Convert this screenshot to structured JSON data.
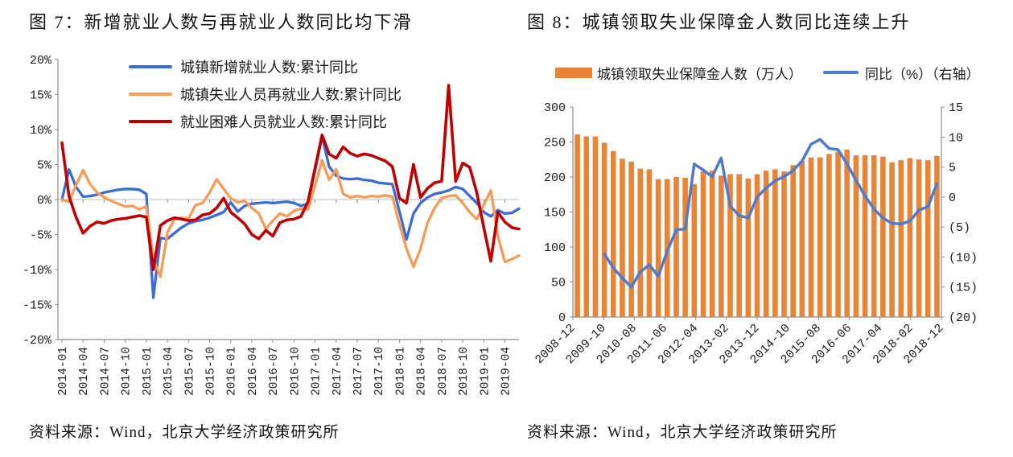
{
  "chart_data": [
    {
      "id": "fig7",
      "type": "line",
      "title": "图 7：新增就业人数与再就业人数同比均下滑",
      "source": "资料来源：Wind，北京大学经济政策研究所",
      "ylabel": "",
      "ylim": [
        -20,
        20
      ],
      "y_ticks": [
        "20%",
        "15%",
        "10%",
        "5%",
        "0%",
        "-5%",
        "-10%",
        "-15%",
        "-20%"
      ],
      "grid": "zero-line-only",
      "legend_position": "top-left-inside",
      "x": [
        "2014-01",
        "2014-02",
        "2014-03",
        "2014-04",
        "2014-05",
        "2014-06",
        "2014-07",
        "2014-08",
        "2014-09",
        "2014-10",
        "2014-11",
        "2014-12",
        "2015-01",
        "2015-02",
        "2015-03",
        "2015-04",
        "2015-05",
        "2015-06",
        "2015-07",
        "2015-08",
        "2015-09",
        "2015-10",
        "2015-11",
        "2015-12",
        "2016-01",
        "2016-02",
        "2016-03",
        "2016-04",
        "2016-05",
        "2016-06",
        "2016-07",
        "2016-08",
        "2016-09",
        "2016-10",
        "2016-11",
        "2016-12",
        "2017-01",
        "2017-02",
        "2017-03",
        "2017-04",
        "2017-05",
        "2017-06",
        "2017-07",
        "2017-08",
        "2017-09",
        "2017-10",
        "2017-11",
        "2017-12",
        "2018-01",
        "2018-02",
        "2018-03",
        "2018-04",
        "2018-05",
        "2018-06",
        "2018-07",
        "2018-08",
        "2018-09",
        "2018-10",
        "2018-11",
        "2018-12",
        "2019-01",
        "2019-02",
        "2019-03",
        "2019-04",
        "2019-05",
        "2019-06"
      ],
      "x_tick_labels": [
        "2014-01",
        "2014-04",
        "2014-07",
        "2014-10",
        "2015-01",
        "2015-04",
        "2015-07",
        "2015-10",
        "2016-01",
        "2016-04",
        "2016-07",
        "2016-10",
        "2017-01",
        "2017-04",
        "2017-07",
        "2017-10",
        "2018-01",
        "2018-04",
        "2018-07",
        "2018-10",
        "2019-01",
        "2019-04"
      ],
      "series": [
        {
          "name": "城镇新增就业人数:累计同比",
          "color": "#3A6CD8",
          "values": [
            0.0,
            4.3,
            1.8,
            0.4,
            0.5,
            0.7,
            1.0,
            1.2,
            1.4,
            1.5,
            1.5,
            1.4,
            0.8,
            -14.0,
            -5.5,
            -5.6,
            -4.8,
            -4.0,
            -3.4,
            -3.1,
            -2.9,
            -2.6,
            -2.2,
            -1.8,
            -0.4,
            -1.7,
            -0.9,
            -0.6,
            -0.5,
            -0.4,
            -0.5,
            -0.4,
            -0.3,
            -0.5,
            -0.9,
            -0.6,
            4.2,
            9.0,
            4.7,
            3.4,
            3.0,
            2.9,
            3.0,
            2.8,
            2.7,
            2.4,
            2.3,
            2.2,
            -1.7,
            -5.7,
            -2.0,
            -0.5,
            0.3,
            0.8,
            1.0,
            1.3,
            1.8,
            1.5,
            0.5,
            -0.5,
            -1.8,
            -2.4,
            -1.5,
            -2.0,
            -1.9,
            -1.3
          ]
        },
        {
          "name": "城镇失业人员再就业人数:累计同比",
          "color": "#F79B57",
          "values": [
            0.0,
            -0.3,
            2.0,
            4.2,
            2.2,
            1.0,
            0.3,
            -0.2,
            -0.6,
            -1.0,
            -0.9,
            -1.4,
            -1.0,
            -8.5,
            -11.0,
            -4.7,
            -2.8,
            -2.6,
            -2.7,
            -0.8,
            -0.5,
            1.0,
            2.9,
            1.5,
            0.2,
            -0.4,
            -0.2,
            -1.2,
            -2.0,
            -4.2,
            -3.0,
            -2.0,
            -2.4,
            -1.6,
            -1.3,
            -1.4,
            2.0,
            5.6,
            2.8,
            4.3,
            0.8,
            0.3,
            0.5,
            0.3,
            0.5,
            0.4,
            0.6,
            0.4,
            -3.5,
            -7.0,
            -9.6,
            -7.0,
            -3.3,
            -1.2,
            0.2,
            0.5,
            0.6,
            -0.5,
            -1.8,
            -2.8,
            -0.8,
            1.3,
            -5.2,
            -8.9,
            -8.5,
            -8.0
          ]
        },
        {
          "name": "就业困难人员就业人数:累计同比",
          "color": "#C00000",
          "values": [
            8.1,
            0.5,
            -2.5,
            -4.8,
            -3.8,
            -3.2,
            -3.4,
            -3.0,
            -2.8,
            -2.7,
            -2.5,
            -2.3,
            -2.5,
            -10.0,
            -3.7,
            -3.0,
            -2.6,
            -2.8,
            -3.0,
            -2.9,
            -2.2,
            -2.0,
            -1.2,
            0.2,
            -1.8,
            -2.6,
            -3.5,
            -5.0,
            -5.6,
            -4.4,
            -5.2,
            -3.3,
            -2.9,
            -2.8,
            -2.4,
            -0.3,
            4.5,
            9.2,
            6.5,
            5.9,
            7.5,
            6.6,
            6.2,
            6.5,
            6.3,
            5.9,
            5.5,
            4.7,
            0.2,
            -0.5,
            5.0,
            0.3,
            1.6,
            2.4,
            2.6,
            16.3,
            2.6,
            5.2,
            4.6,
            1.0,
            -4.0,
            -8.8,
            -1.8,
            -3.2,
            -4.0,
            -4.2
          ]
        }
      ]
    },
    {
      "id": "fig8",
      "type": "bar+line",
      "title": "图 8：城镇领取失业保障金人数同比连续上升",
      "source": "资料来源：Wind，北京大学经济政策研究所",
      "categories": [
        "2008-12",
        "2009-03",
        "2009-06",
        "2009-09",
        "2009-12",
        "2010-03",
        "2010-06",
        "2010-09",
        "2010-12",
        "2011-03",
        "2011-06",
        "2011-09",
        "2011-12",
        "2012-03",
        "2012-06",
        "2012-09",
        "2012-12",
        "2013-03",
        "2013-06",
        "2013-09",
        "2013-12",
        "2014-03",
        "2014-06",
        "2014-09",
        "2014-12",
        "2015-03",
        "2015-06",
        "2015-09",
        "2015-12",
        "2016-03",
        "2016-06",
        "2016-09",
        "2016-12",
        "2017-03",
        "2017-06",
        "2017-09",
        "2017-12",
        "2018-03",
        "2018-06",
        "2018-09",
        "2018-12"
      ],
      "x_tick_labels": [
        "2008-12",
        "2009-10",
        "2010-08",
        "2011-06",
        "2012-04",
        "2013-02",
        "2013-12",
        "2014-10",
        "2015-08",
        "2016-06",
        "2017-04",
        "2018-02",
        "2018-12"
      ],
      "bars": {
        "name": "城镇领取失业保障金人数（万人）",
        "color": "#E98436",
        "axis": "left",
        "values": [
          261,
          258,
          258,
          249,
          237,
          226,
          222,
          212,
          211,
          197,
          197,
          200,
          199,
          190,
          208,
          209,
          202,
          204,
          204,
          198,
          204,
          209,
          211,
          208,
          217,
          223,
          228,
          228,
          233,
          236,
          239,
          231,
          231,
          231,
          229,
          221,
          224,
          227,
          225,
          224,
          230
        ]
      },
      "line": {
        "name": "同比（%）（右轴）",
        "color": "#4F7BCF",
        "axis": "right",
        "values": [
          null,
          null,
          null,
          -9.5,
          -11.8,
          -13.5,
          -15.0,
          -12.5,
          -11.3,
          -13.2,
          -9.0,
          -5.5,
          -5.3,
          5.5,
          4.5,
          3.4,
          6.5,
          -1.5,
          -3.1,
          -3.5,
          0.0,
          1.5,
          2.7,
          3.4,
          4.4,
          6.0,
          8.8,
          9.6,
          8.1,
          7.9,
          5.5,
          2.8,
          0.2,
          -2.0,
          -3.5,
          -4.4,
          -4.5,
          -4.0,
          -2.2,
          -1.6,
          2.2
        ]
      },
      "left_axis": {
        "lim": [
          0,
          300
        ],
        "ticks": [
          "300",
          "250",
          "200",
          "150",
          "100",
          "50",
          "0"
        ]
      },
      "right_axis": {
        "lim": [
          -20,
          15
        ],
        "ticks": [
          "15",
          "10",
          "5",
          "0",
          "(5)",
          "(10)",
          "(15)",
          "(20)"
        ],
        "negative_color": "#FF0000"
      }
    }
  ]
}
